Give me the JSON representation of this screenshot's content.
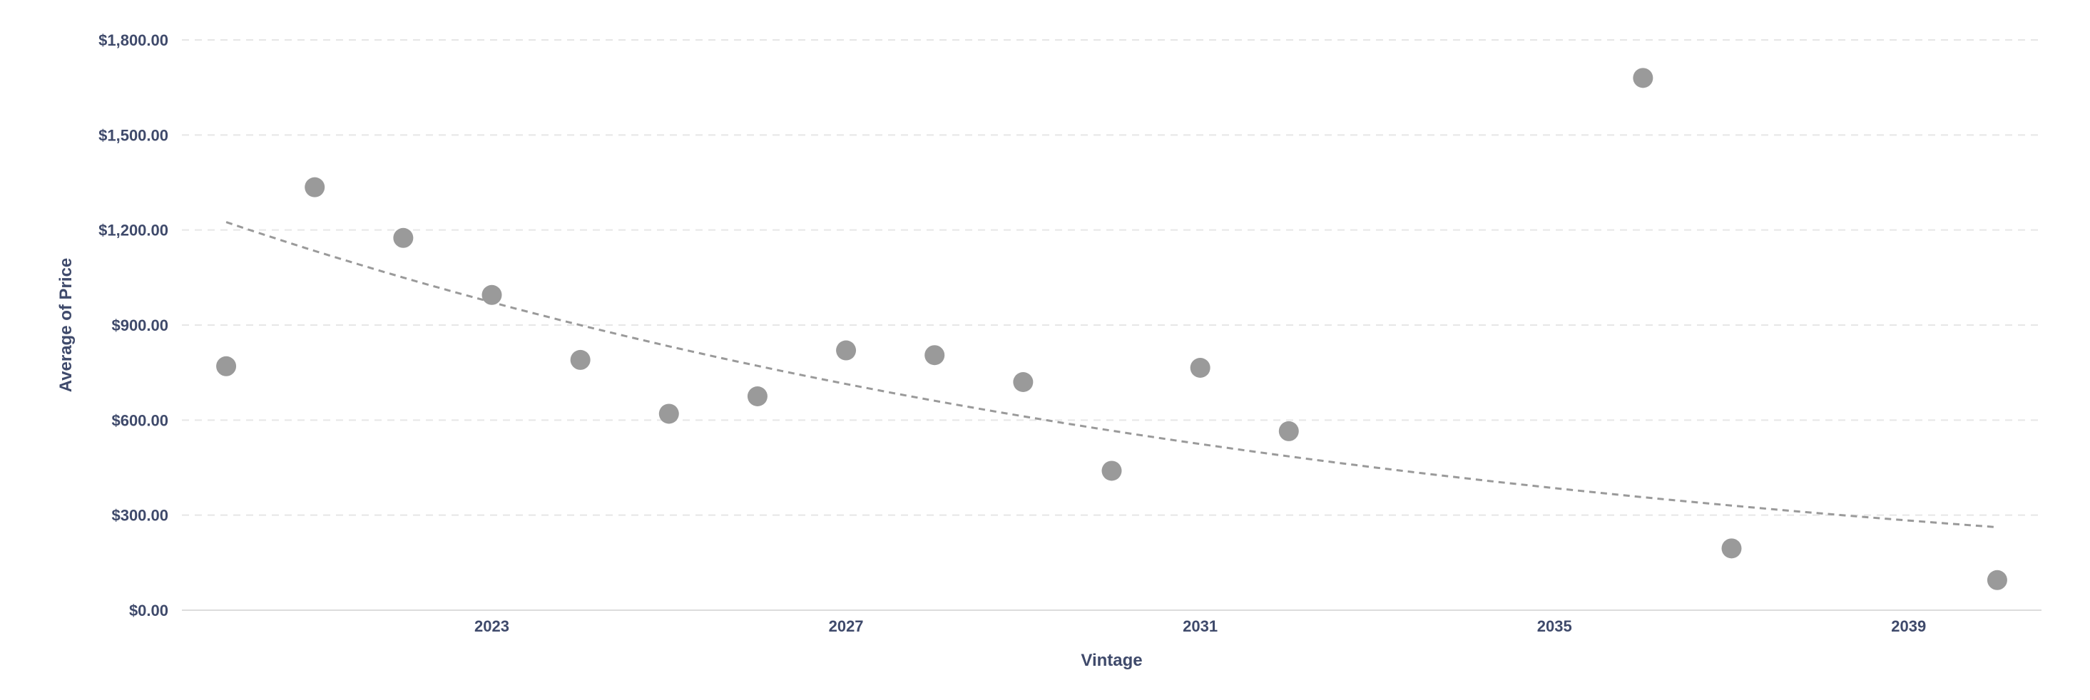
{
  "chart_data": {
    "type": "scatter",
    "xlabel": "Vintage",
    "ylabel": "Average of Price",
    "xlim": [
      2019.5,
      2040.5
    ],
    "ylim": [
      0,
      1800
    ],
    "x_ticks": [
      2023,
      2027,
      2031,
      2035,
      2039
    ],
    "x_tick_labels": [
      "2023",
      "2027",
      "2031",
      "2035",
      "2039"
    ],
    "y_ticks": [
      0,
      300,
      600,
      900,
      1200,
      1500,
      1800
    ],
    "y_tick_labels": [
      "$0.00",
      "$300.00",
      "$600.00",
      "$900.00",
      "$1,200.00",
      "$1,500.00",
      "$1,800.00"
    ],
    "grid": true,
    "legend": "none",
    "colors": {
      "points": "#9a9a9a",
      "trendline": "#9a9a9a",
      "grid": "#e6e6e6",
      "axis": "#dcdcdc",
      "text": "#3f4a6b"
    },
    "series": [
      {
        "x": [
          2020,
          2021,
          2022,
          2023,
          2024,
          2025,
          2026,
          2027,
          2028,
          2029,
          2030,
          2031,
          2032,
          2036,
          2037,
          2040
        ],
        "values": [
          770,
          1335,
          1175,
          995,
          790,
          620,
          675,
          820,
          805,
          720,
          440,
          765,
          565,
          1680,
          195,
          95
        ]
      }
    ],
    "trendline": {
      "type": "exponential",
      "style": "dashed",
      "x": [
        2020,
        2040
      ],
      "values": [
        1225,
        262
      ]
    }
  }
}
